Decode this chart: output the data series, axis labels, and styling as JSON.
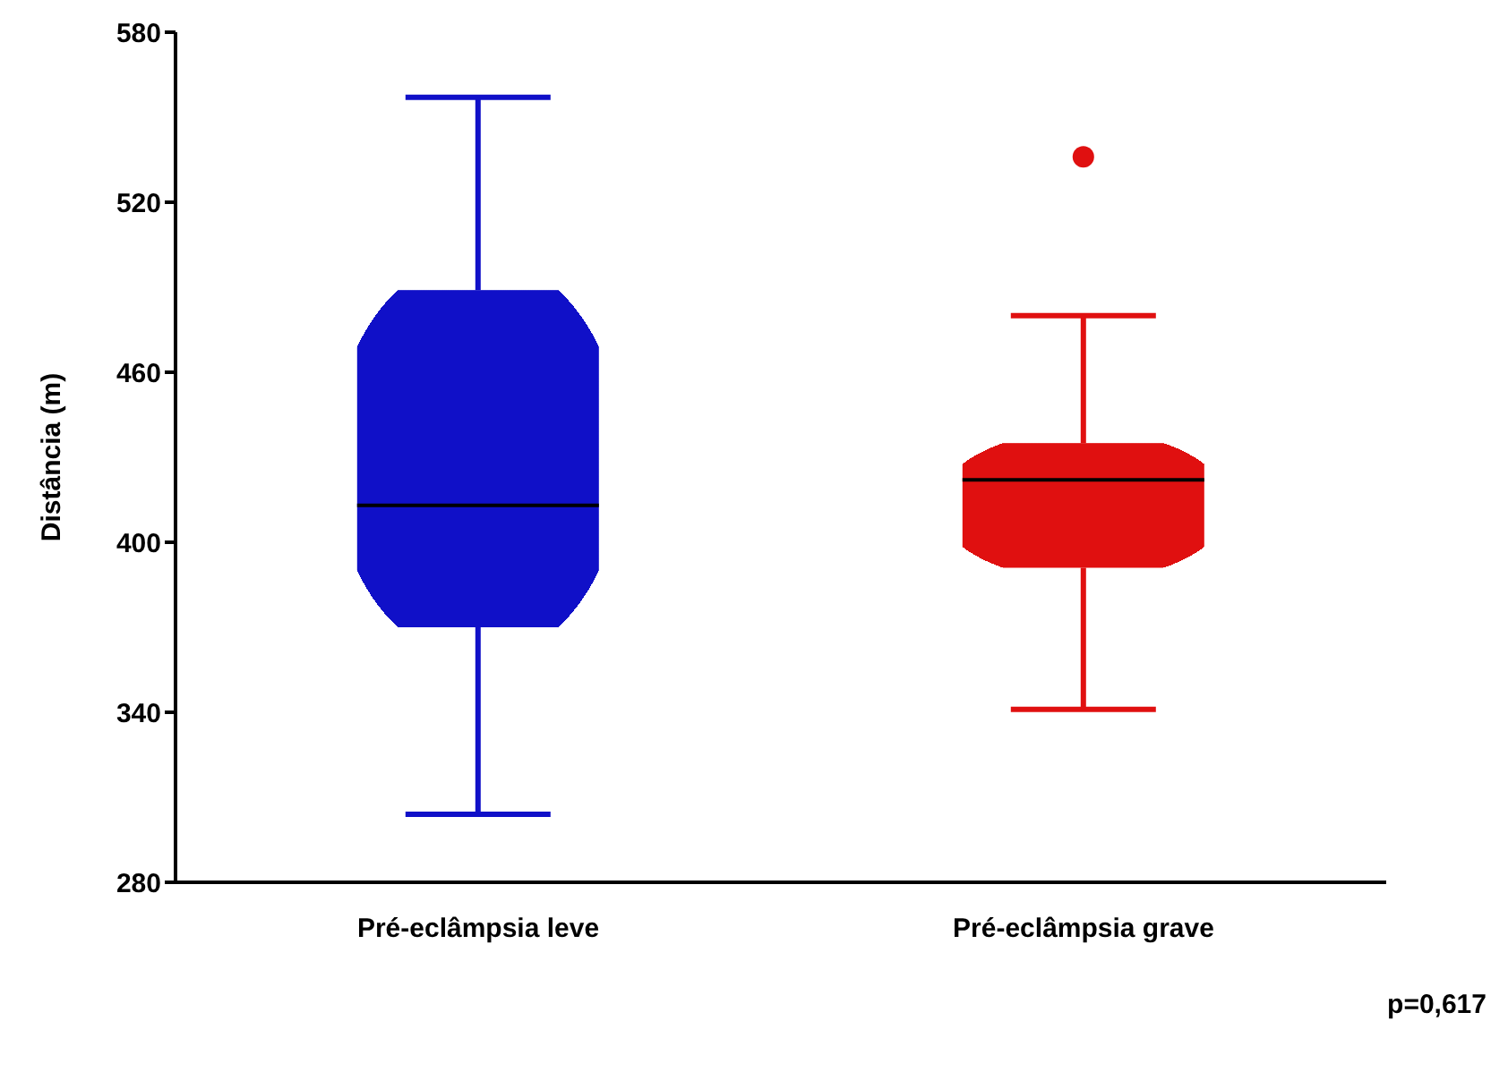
{
  "chart_data": {
    "type": "box",
    "ylabel": "Distância (m)",
    "categories": [
      "Pré-eclâmpsia leve",
      "Pré-eclâmpsia grave"
    ],
    "boxes": [
      {
        "low": 304,
        "q1": 370,
        "median": 413,
        "q3": 489,
        "high": 557
      },
      {
        "low": 341,
        "q1": 391,
        "median": 422,
        "q3": 435,
        "high": 480,
        "outliers": [
          536
        ]
      }
    ],
    "colors": [
      "#1010c8",
      "#e01010"
    ],
    "ylim": [
      280,
      580
    ],
    "yticks": [
      280,
      340,
      400,
      460,
      520,
      580
    ],
    "annotations": [
      "p=0,617"
    ]
  }
}
